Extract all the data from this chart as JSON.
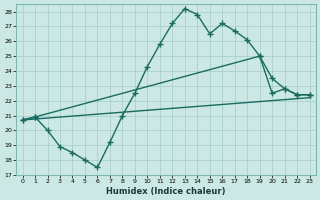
{
  "xlabel": "Humidex (Indice chaleur)",
  "background_color": "#cce8e5",
  "grid_color": "#aacfcb",
  "line_color": "#1a6b60",
  "xlim": [
    -0.5,
    23.5
  ],
  "ylim": [
    17,
    28.5
  ],
  "xticks": [
    0,
    1,
    2,
    3,
    4,
    5,
    6,
    7,
    8,
    9,
    10,
    11,
    12,
    13,
    14,
    15,
    16,
    17,
    18,
    19,
    20,
    21,
    22,
    23
  ],
  "yticks": [
    17,
    18,
    19,
    20,
    21,
    22,
    23,
    24,
    25,
    26,
    27,
    28
  ],
  "curve1_x": [
    0,
    1,
    2,
    3,
    4,
    5,
    6,
    7,
    8,
    9,
    10,
    11,
    12,
    13,
    14,
    15,
    16,
    17,
    18,
    19,
    20,
    21,
    22,
    23
  ],
  "curve1_y": [
    20.7,
    20.9,
    20.0,
    18.9,
    18.5,
    18.0,
    17.5,
    19.2,
    21.0,
    22.5,
    24.3,
    25.8,
    27.2,
    28.2,
    27.8,
    26.5,
    27.2,
    26.7,
    26.1,
    25.0,
    22.5,
    22.8,
    22.4,
    22.4
  ],
  "curve2_x": [
    0,
    1,
    19,
    20,
    21,
    22,
    23
  ],
  "curve2_y": [
    20.7,
    20.9,
    25.0,
    23.5,
    22.8,
    22.4,
    22.4
  ],
  "curve3_x": [
    0,
    23
  ],
  "curve3_y": [
    20.7,
    22.2
  ],
  "linewidth": 1.0,
  "markersize": 2.8
}
